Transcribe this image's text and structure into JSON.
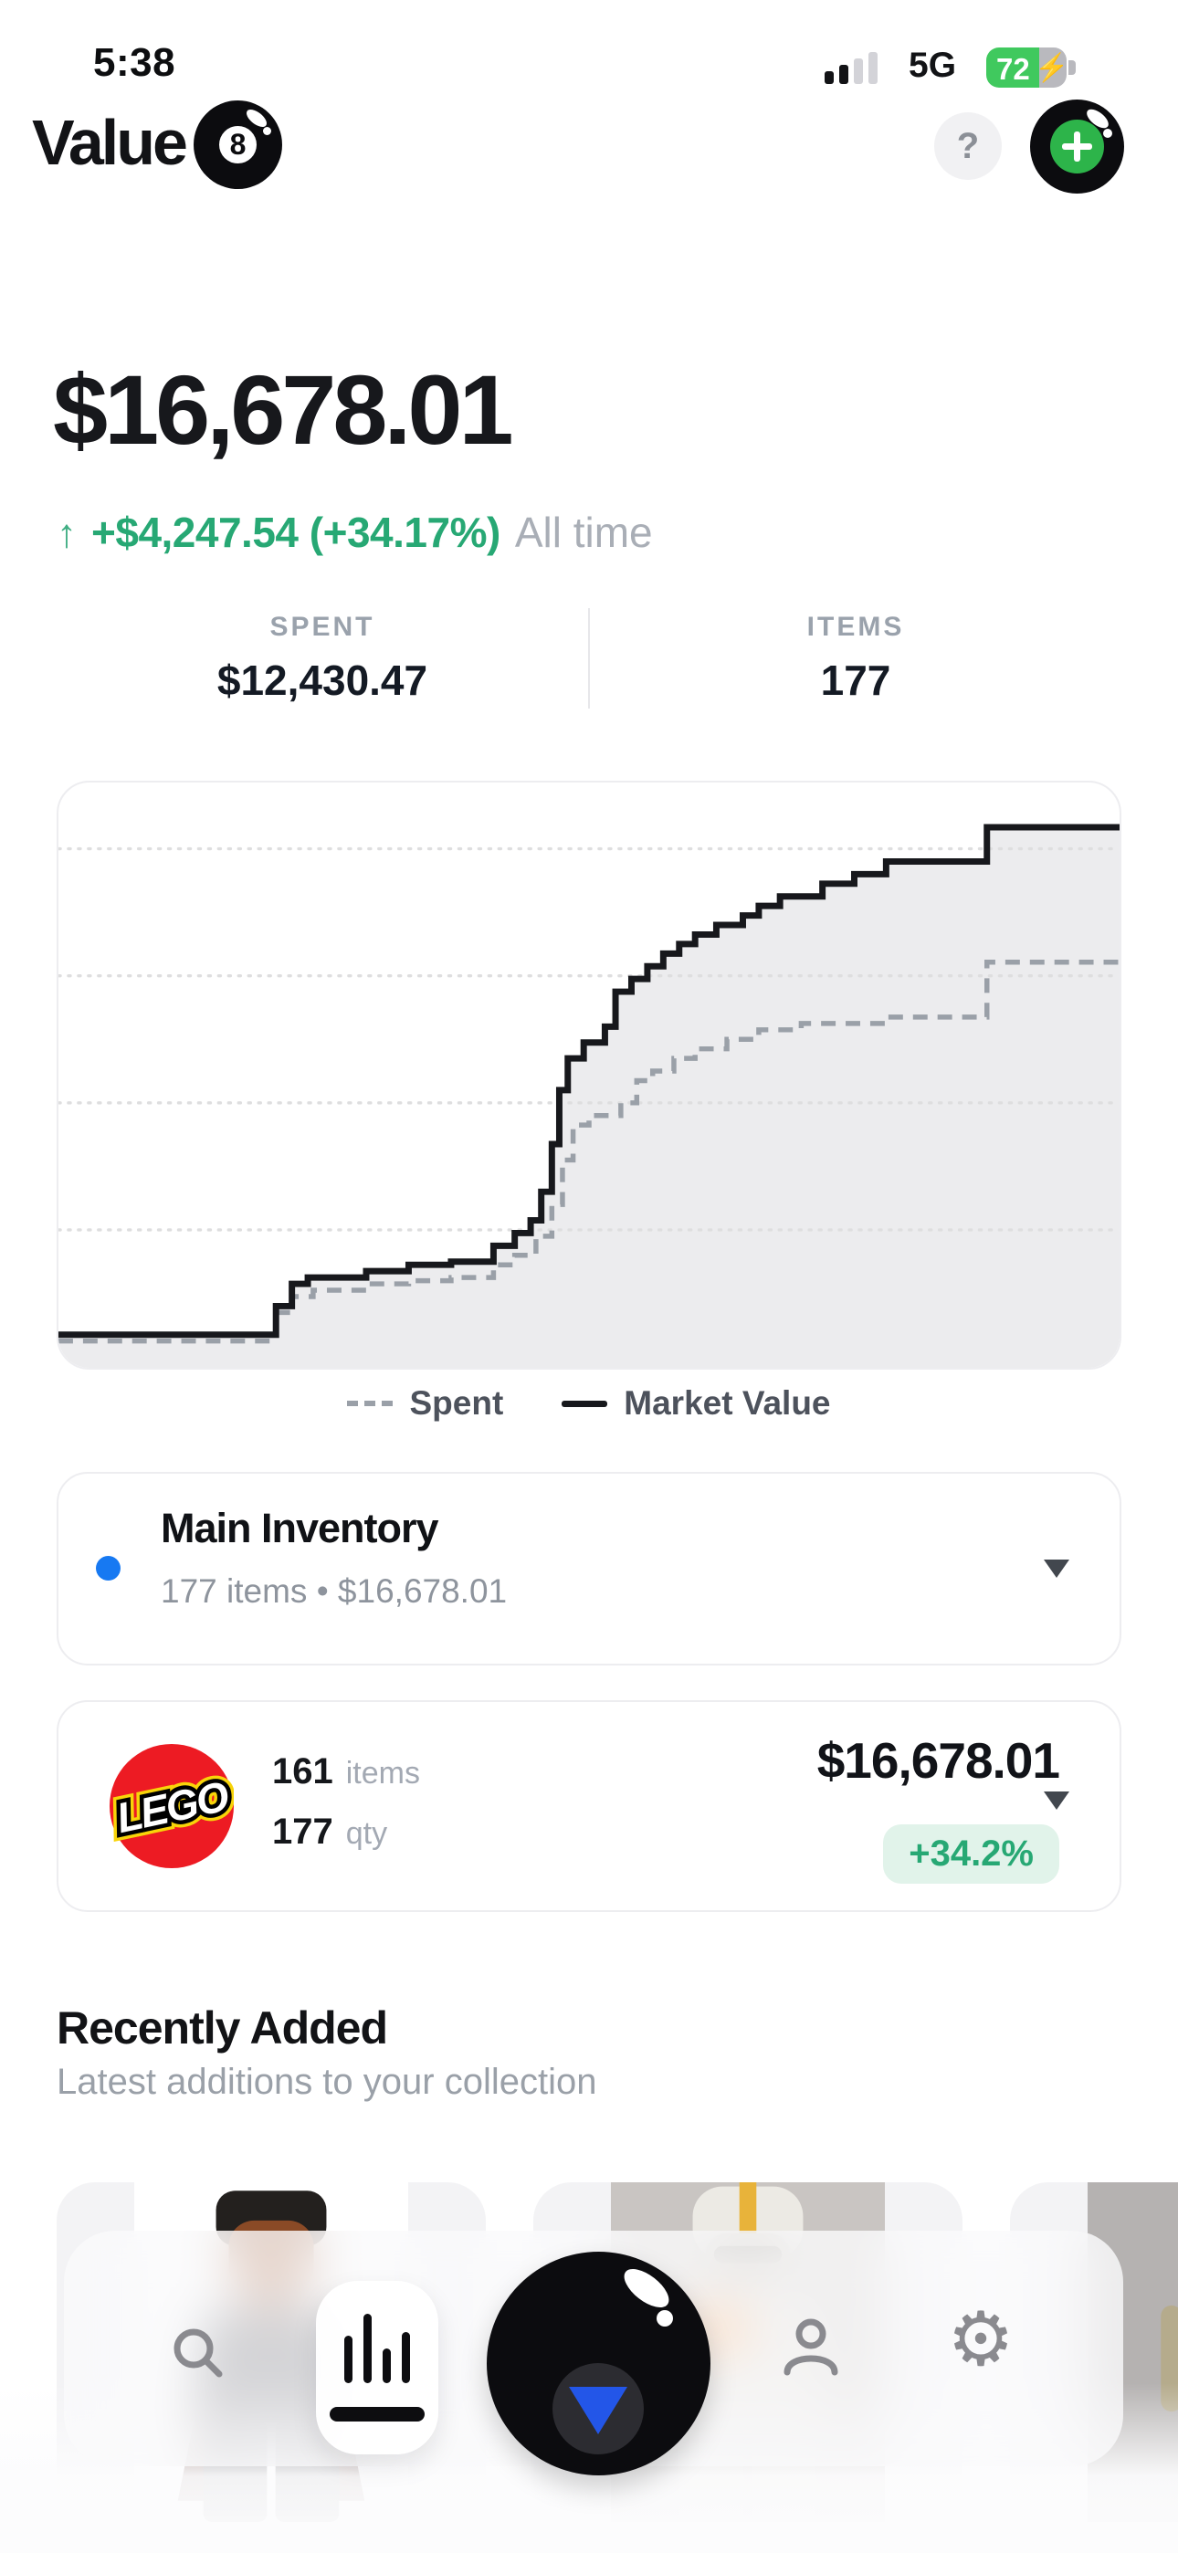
{
  "status_bar": {
    "time": "5:38",
    "network": "5G",
    "battery_percent": "72"
  },
  "header": {
    "app_name": "Value",
    "logo_digit": "8",
    "help_label": "?"
  },
  "summary": {
    "total_value": "$16,678.01",
    "gain_arrow": "↑",
    "gain_text": "+$4,247.54 (+34.17%)",
    "gain_period": "All time",
    "spent_label": "SPENT",
    "spent_value": "$12,430.47",
    "items_label": "ITEMS",
    "items_value": "177"
  },
  "chart_data": {
    "type": "line",
    "subtype": "step-area",
    "title": "",
    "xlabel": "",
    "ylabel": "",
    "x_range_percent": [
      0,
      100
    ],
    "ylim": [
      0,
      18086
    ],
    "grid": true,
    "grid_values": [
      4000,
      8000,
      12000,
      16000
    ],
    "legend_position": "bottom",
    "legend": [
      {
        "label": "Spent",
        "style": "dashed"
      },
      {
        "label": "Market Value",
        "style": "solid"
      }
    ],
    "series": [
      {
        "name": "Spent",
        "style": "dashed",
        "color": "#9aa0a8",
        "final_value": 12430.47,
        "steps": [
          [
            0,
            500
          ],
          [
            20.5,
            1400
          ],
          [
            22,
            1900
          ],
          [
            24,
            2100
          ],
          [
            29,
            2300
          ],
          [
            33,
            2400
          ],
          [
            37,
            2500
          ],
          [
            41,
            2900
          ],
          [
            43,
            3200
          ],
          [
            45,
            3800
          ],
          [
            46.5,
            4800
          ],
          [
            47.5,
            6200
          ],
          [
            48.5,
            7300
          ],
          [
            50,
            7600
          ],
          [
            53,
            8000
          ],
          [
            54.5,
            8700
          ],
          [
            56,
            9000
          ],
          [
            58,
            9400
          ],
          [
            60,
            9700
          ],
          [
            63,
            10000
          ],
          [
            66,
            10300
          ],
          [
            70,
            10500
          ],
          [
            78,
            10700
          ],
          [
            87.5,
            12430
          ]
        ]
      },
      {
        "name": "Market Value",
        "style": "solid",
        "color": "#17181c",
        "fill": "#ececee",
        "final_value": 16678.01,
        "steps": [
          [
            0,
            700
          ],
          [
            20.5,
            1600
          ],
          [
            22,
            2300
          ],
          [
            23.5,
            2500
          ],
          [
            29,
            2700
          ],
          [
            33,
            2900
          ],
          [
            37,
            3000
          ],
          [
            41,
            3500
          ],
          [
            43,
            3900
          ],
          [
            44.5,
            4300
          ],
          [
            45.5,
            5200
          ],
          [
            46.5,
            6700
          ],
          [
            47.2,
            8400
          ],
          [
            48,
            9400
          ],
          [
            49.5,
            9900
          ],
          [
            51.5,
            10400
          ],
          [
            52.5,
            11500
          ],
          [
            54,
            11900
          ],
          [
            55.5,
            12300
          ],
          [
            57,
            12700
          ],
          [
            58.5,
            13000
          ],
          [
            60,
            13300
          ],
          [
            62,
            13600
          ],
          [
            64.5,
            13900
          ],
          [
            66,
            14200
          ],
          [
            68,
            14500
          ],
          [
            72,
            14900
          ],
          [
            75,
            15200
          ],
          [
            78,
            15600
          ],
          [
            87.5,
            16678
          ]
        ]
      }
    ]
  },
  "inventory_card": {
    "name": "Main Inventory",
    "subtitle": "177 items • $16,678.01",
    "dot_color": "#1779f2"
  },
  "brand_card": {
    "brand": "LEGO",
    "items_count": "161",
    "items_label": "items",
    "qty_count": "177",
    "qty_label": "qty",
    "value": "$16,678.01",
    "change": "+34.2%",
    "logo_bg": "#ed1b23"
  },
  "recently_added": {
    "title": "Recently Added",
    "subtitle": "Latest additions to your collection",
    "cards": [
      {
        "photo_bg": "#ffffff",
        "palette": {
          "hair": "#23201e",
          "head": "#8a4a26",
          "torso": "#3b3b42",
          "cape": "#5e3a33",
          "legs": "#3f3f46"
        }
      },
      {
        "photo_bg": "#c9c5c2",
        "palette": {
          "hair": "#eceae4",
          "head": "#dad6cf",
          "torso": "#dcd8d2",
          "cape": "#e8944a",
          "legs": "#cfccc6"
        }
      },
      {
        "photo_bg": "#b5b2b1",
        "palette": {
          "hair": "#cfc3a4",
          "head": "#d6cba9",
          "torso": "#c9bd9b",
          "cape": "#b5ab8c",
          "legs": "#cfc3a4"
        }
      }
    ]
  },
  "nav": {
    "icons": [
      "search-icon",
      "bar-chart-icon",
      "magic-ball-icon",
      "profile-icon",
      "settings-icon"
    ],
    "active": "bar-chart-icon",
    "gear_glyph": "⚙"
  },
  "colors": {
    "accent_green": "#27a874",
    "badge_bg": "#e1f3ea",
    "blue_dot": "#1779f2",
    "battery_green": "#40c95e",
    "lego_red": "#ed1b23",
    "ball_triangle_blue": "#2356e8",
    "chart_line": "#17181c",
    "chart_dashed": "#9aa0a8",
    "chart_fill": "#ececee"
  }
}
